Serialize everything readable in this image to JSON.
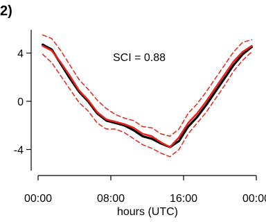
{
  "panel_label": "2)",
  "chart_data": {
    "type": "line",
    "title": "",
    "xlabel": "hours (UTC)",
    "ylabel": "",
    "xlim": [
      0,
      24
    ],
    "ylim": [
      -6,
      6
    ],
    "x_ticks": [
      0,
      8,
      16,
      24
    ],
    "x_tick_labels": [
      "00:00",
      "08:00",
      "16:00",
      "00:00"
    ],
    "y_ticks": [
      4,
      0,
      -4
    ],
    "y_tick_labels": [
      "4",
      "0",
      "-4"
    ],
    "grid": false,
    "legend": "none",
    "annotation": "SCI = 0.88",
    "x": [
      0.5,
      1.5,
      2.5,
      3.5,
      4.5,
      5.5,
      6.5,
      7.5,
      8.5,
      9.5,
      10.5,
      11.5,
      12.5,
      13.5,
      14.5,
      15.5,
      16.5,
      17.5,
      18.5,
      19.5,
      20.5,
      21.5,
      22.5,
      23.5
    ],
    "series": [
      {
        "color": "#000000",
        "style": "solid",
        "values": [
          4.7,
          4.3,
          3.1,
          1.9,
          0.8,
          0.0,
          -1.0,
          -1.6,
          -1.8,
          -2.0,
          -2.4,
          -2.9,
          -3.1,
          -3.5,
          -3.8,
          -3.3,
          -2.1,
          -1.3,
          -0.3,
          0.8,
          1.9,
          3.0,
          3.9,
          4.5
        ]
      },
      {
        "color": "#e8221c",
        "style": "solid",
        "values": [
          4.6,
          4.2,
          3.2,
          2.1,
          0.9,
          0.1,
          -0.9,
          -1.5,
          -1.7,
          -1.9,
          -2.2,
          -2.7,
          -2.9,
          -3.4,
          -3.8,
          -3.0,
          -1.8,
          -1.0,
          0.0,
          1.1,
          2.2,
          3.3,
          4.1,
          4.6
        ]
      },
      {
        "color": "#e8221c",
        "style": "dashed",
        "values": [
          5.5,
          5.2,
          4.2,
          3.0,
          1.8,
          1.0,
          0.1,
          -0.6,
          -1.1,
          -1.4,
          -1.6,
          -2.1,
          -2.2,
          -2.7,
          -2.9,
          -2.3,
          -1.0,
          -0.2,
          0.8,
          1.9,
          3.0,
          4.1,
          4.9,
          5.1
        ]
      },
      {
        "color": "#e8221c",
        "style": "dashed",
        "values": [
          3.9,
          3.2,
          2.1,
          1.0,
          -0.1,
          -0.8,
          -1.8,
          -2.3,
          -2.3,
          -2.6,
          -3.1,
          -3.6,
          -3.9,
          -4.3,
          -4.6,
          -4.0,
          -2.7,
          -1.8,
          -0.9,
          0.2,
          1.3,
          2.5,
          3.4,
          4.1
        ]
      }
    ]
  }
}
